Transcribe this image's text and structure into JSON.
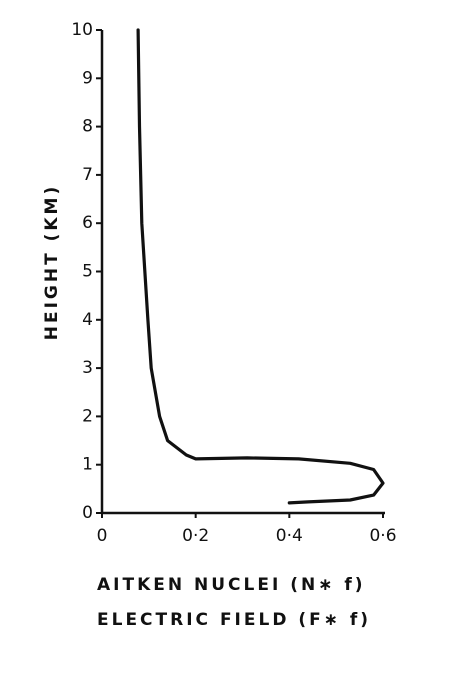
{
  "chart_data": {
    "type": "line",
    "y_label": "HEIGHT (KM)",
    "x_label": [
      "AITKEN NUCLEI (N∗ f)",
      "ELECTRIC FIELD (F∗ f)"
    ],
    "x": [
      0.077,
      0.08,
      0.085,
      0.098,
      0.105,
      0.123,
      0.14,
      0.18,
      0.2,
      0.31,
      0.42,
      0.53,
      0.58,
      0.6,
      0.58,
      0.53,
      0.44,
      0.4
    ],
    "series": [
      {
        "color": "#111111",
        "values": [
          10,
          8,
          6,
          4,
          3,
          2,
          1.5,
          1.2,
          1.12,
          1.14,
          1.12,
          1.03,
          0.9,
          0.62,
          0.37,
          0.27,
          0.23,
          0.21
        ]
      }
    ],
    "xlim": [
      0,
      0.6
    ],
    "xticks": [
      0,
      {
        "value": 0.2,
        "label": "0·2"
      },
      {
        "value": 0.4,
        "label": "0·4"
      },
      {
        "value": 0.6,
        "label": "0·6"
      }
    ],
    "ylim": [
      0,
      10
    ],
    "yticks": [
      0,
      1,
      2,
      3,
      4,
      5,
      6,
      7,
      8,
      9,
      10
    ]
  }
}
